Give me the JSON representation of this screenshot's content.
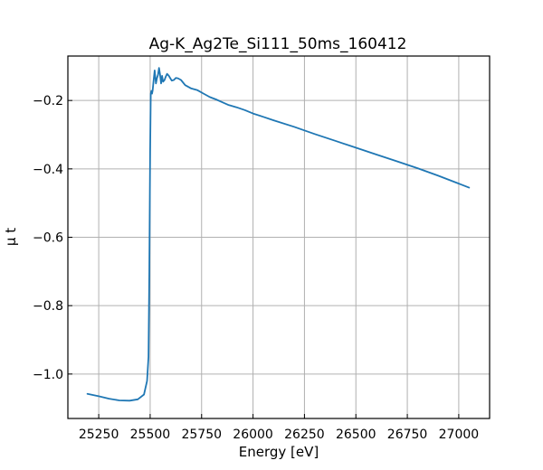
{
  "chart_data": {
    "type": "line",
    "title": "Ag-K_Ag2Te_Si111_50ms_160412",
    "xlabel": "Energy [eV]",
    "ylabel": "μ t",
    "xlim": [
      25100,
      27150
    ],
    "ylim": [
      -1.13,
      -0.07
    ],
    "xticks": [
      25250,
      25500,
      25750,
      26000,
      26250,
      26500,
      26750,
      27000
    ],
    "yticks": [
      -1.0,
      -0.8,
      -0.6,
      -0.4,
      -0.2
    ],
    "xtick_labels": [
      "25250",
      "25500",
      "25750",
      "26000",
      "26250",
      "26500",
      "26750",
      "27000"
    ],
    "ytick_labels": [
      "−1.0",
      "−0.8",
      "−0.6",
      "−0.4",
      "−0.2"
    ],
    "grid": true,
    "series": [
      {
        "color": "#1f77b4",
        "x": [
          25195,
          25250,
          25300,
          25350,
          25400,
          25440,
          25470,
          25485,
          25492,
          25496,
          25500,
          25503,
          25506,
          25509,
          25512,
          25517,
          25522,
          25528,
          25533,
          25538,
          25543,
          25548,
          25553,
          25558,
          25563,
          25570,
          25576,
          25582,
          25590,
          25598,
          25605,
          25615,
          25625,
          25635,
          25650,
          25670,
          25700,
          25730,
          25760,
          25790,
          25820,
          25850,
          25880,
          25920,
          25960,
          26000,
          26050,
          26100,
          26200,
          26300,
          26400,
          26500,
          26600,
          26700,
          26800,
          26900,
          27000,
          27050
        ],
        "y": [
          -1.058,
          -1.065,
          -1.072,
          -1.077,
          -1.078,
          -1.074,
          -1.06,
          -1.02,
          -0.95,
          -0.7,
          -0.35,
          -0.18,
          -0.172,
          -0.18,
          -0.17,
          -0.14,
          -0.112,
          -0.15,
          -0.135,
          -0.125,
          -0.105,
          -0.123,
          -0.15,
          -0.128,
          -0.145,
          -0.14,
          -0.13,
          -0.122,
          -0.127,
          -0.135,
          -0.142,
          -0.14,
          -0.134,
          -0.135,
          -0.14,
          -0.155,
          -0.165,
          -0.17,
          -0.18,
          -0.19,
          -0.197,
          -0.205,
          -0.213,
          -0.22,
          -0.228,
          -0.238,
          -0.248,
          -0.258,
          -0.277,
          -0.298,
          -0.318,
          -0.338,
          -0.358,
          -0.378,
          -0.398,
          -0.42,
          -0.443,
          -0.455
        ]
      }
    ]
  }
}
